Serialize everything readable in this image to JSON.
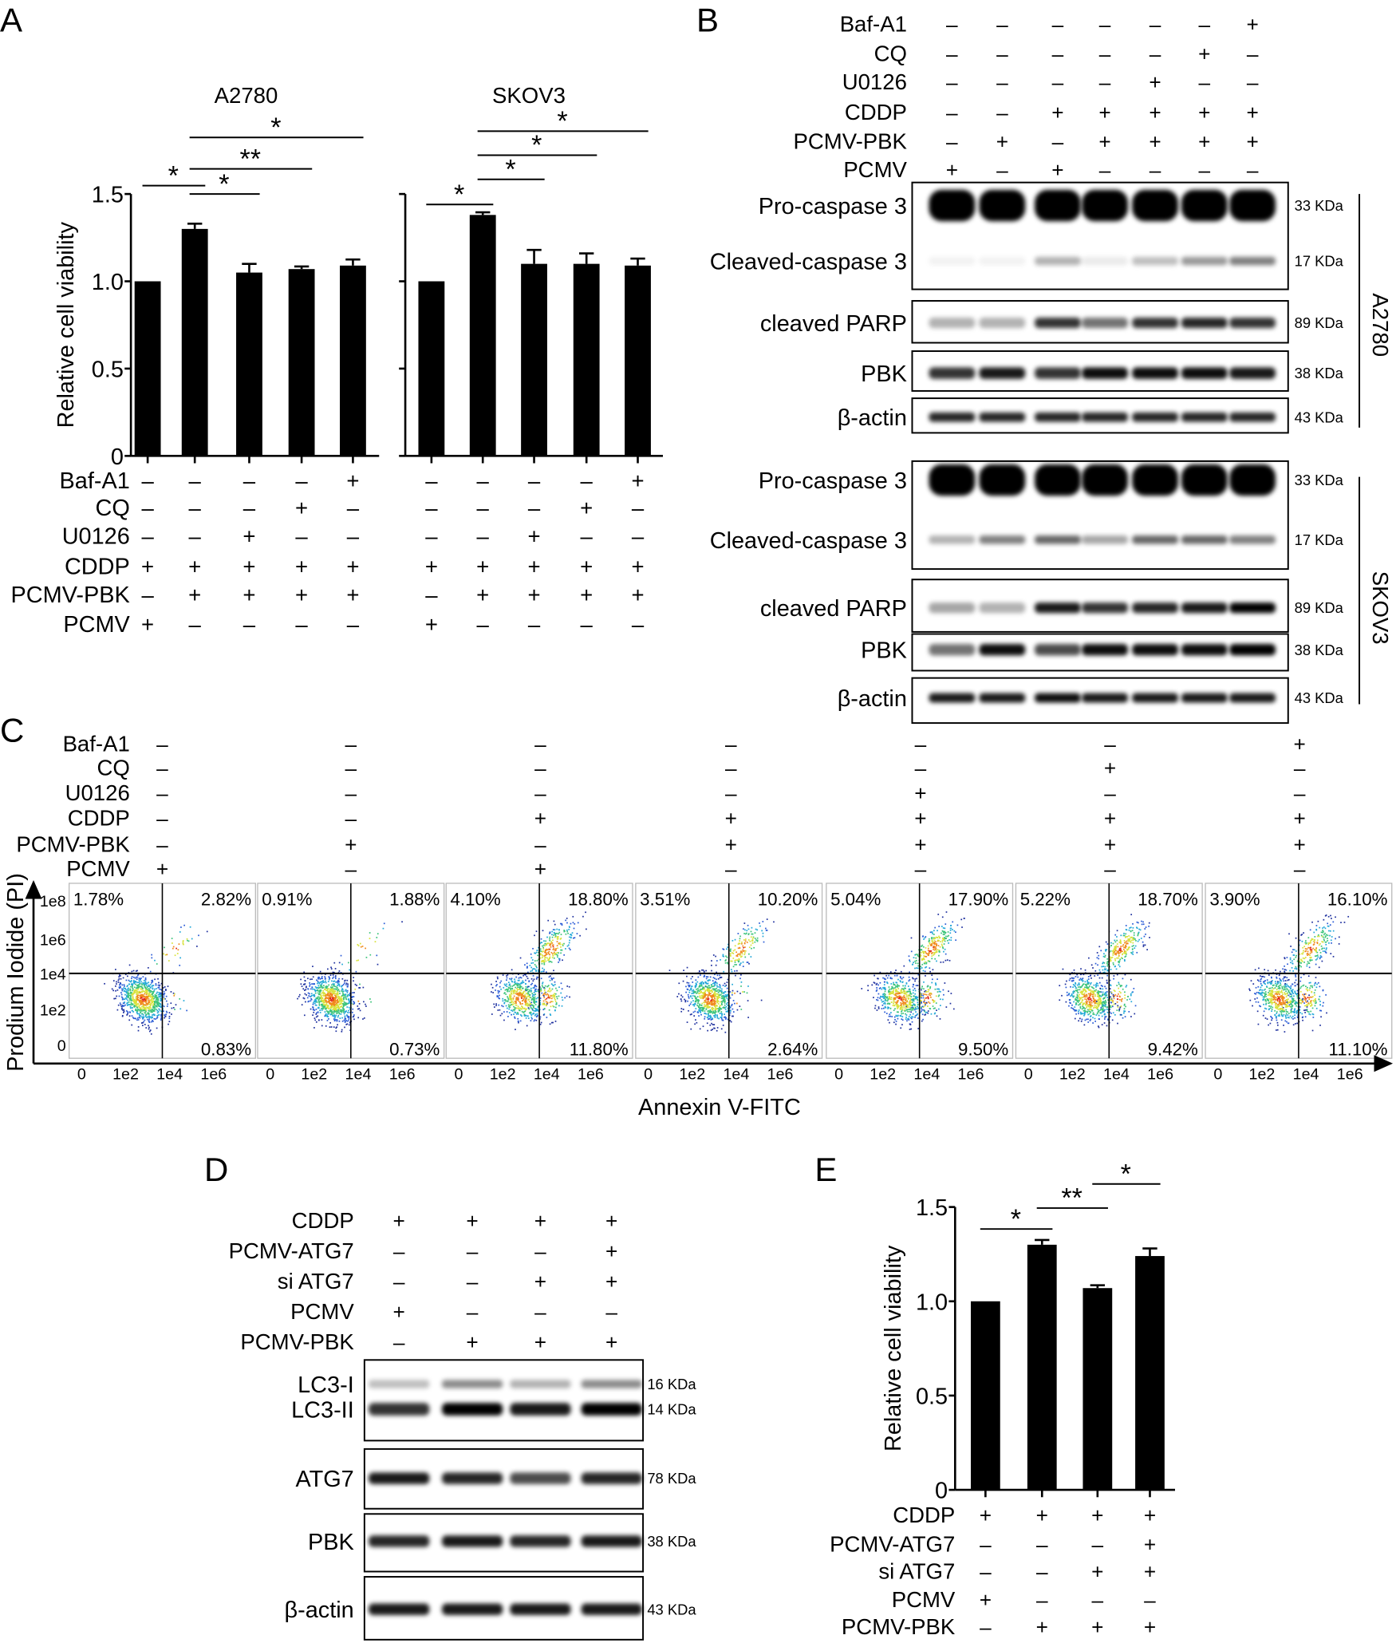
{
  "panels": {
    "A": "A",
    "B": "B",
    "C": "C",
    "D": "D",
    "E": "E"
  },
  "chart_data": [
    {
      "type": "bar",
      "title": "A2780",
      "ylabel": "Relative cell viability",
      "ylim": [
        0,
        1.5
      ],
      "yticks": [
        "0",
        "0.5",
        "1.0",
        "1.5"
      ],
      "values": [
        1.0,
        1.3,
        1.05,
        1.07,
        1.09
      ],
      "errors": [
        0,
        0.03,
        0.05,
        0.015,
        0.035
      ],
      "significance": [
        {
          "from": 1,
          "to": 2,
          "label": "*"
        },
        {
          "from": 2,
          "to": 3,
          "label": "*"
        },
        {
          "from": 2,
          "to": 4,
          "label": "**"
        },
        {
          "from": 2,
          "to": 5,
          "label": "*"
        }
      ]
    },
    {
      "type": "bar",
      "title": "SKOV3",
      "ylim": [
        0,
        1.5
      ],
      "values": [
        1.0,
        1.38,
        1.1,
        1.1,
        1.09
      ],
      "errors": [
        0,
        0.015,
        0.08,
        0.06,
        0.04
      ],
      "significance": [
        {
          "from": 1,
          "to": 2,
          "label": "*"
        },
        {
          "from": 2,
          "to": 3,
          "label": "*"
        },
        {
          "from": 2,
          "to": 4,
          "label": "*"
        },
        {
          "from": 2,
          "to": 5,
          "label": "*"
        }
      ]
    },
    {
      "type": "bar",
      "ylabel": "Relative cell viability",
      "ylim": [
        0,
        1.5
      ],
      "yticks": [
        "0",
        "0.5",
        "1.0",
        "1.5"
      ],
      "values": [
        1.0,
        1.3,
        1.07,
        1.24
      ],
      "errors": [
        0,
        0.025,
        0.015,
        0.04
      ],
      "significance": [
        {
          "from": 1,
          "to": 2,
          "label": "*"
        },
        {
          "from": 2,
          "to": 3,
          "label": "**"
        },
        {
          "from": 3,
          "to": 4,
          "label": "*"
        }
      ]
    }
  ],
  "treatments": {
    "A": [
      {
        "label": "Baf-A1",
        "values": [
          "–",
          "–",
          "–",
          "–",
          "+"
        ]
      },
      {
        "label": "CQ",
        "values": [
          "–",
          "–",
          "–",
          "+",
          "–"
        ]
      },
      {
        "label": "U0126",
        "values": [
          "–",
          "–",
          "+",
          "–",
          "–"
        ]
      },
      {
        "label": "CDDP",
        "values": [
          "+",
          "+",
          "+",
          "+",
          "+"
        ]
      },
      {
        "label": "PCMV-PBK",
        "values": [
          "–",
          "+",
          "+",
          "+",
          "+"
        ]
      },
      {
        "label": "PCMV",
        "values": [
          "+",
          "–",
          "–",
          "–",
          "–"
        ]
      }
    ],
    "B": [
      {
        "label": "Baf-A1",
        "values": [
          "–",
          "–",
          "–",
          "–",
          "–",
          "–",
          "+"
        ]
      },
      {
        "label": "CQ",
        "values": [
          "–",
          "–",
          "–",
          "–",
          "–",
          "+",
          "–"
        ]
      },
      {
        "label": "U0126",
        "values": [
          "–",
          "–",
          "–",
          "–",
          "+",
          "–",
          "–"
        ]
      },
      {
        "label": "CDDP",
        "values": [
          "–",
          "–",
          "+",
          "+",
          "+",
          "+",
          "+"
        ]
      },
      {
        "label": "PCMV-PBK",
        "values": [
          "–",
          "+",
          "–",
          "+",
          "+",
          "+",
          "+"
        ]
      },
      {
        "label": "PCMV",
        "values": [
          "+",
          "–",
          "+",
          "–",
          "–",
          "–",
          "–"
        ]
      }
    ],
    "D": [
      {
        "label": "CDDP",
        "values": [
          "+",
          "+",
          "+",
          "+"
        ]
      },
      {
        "label": "PCMV-ATG7",
        "values": [
          "–",
          "–",
          "–",
          "+"
        ]
      },
      {
        "label": "si ATG7",
        "values": [
          "–",
          "–",
          "+",
          "+"
        ]
      },
      {
        "label": "PCMV",
        "values": [
          "+",
          "–",
          "–",
          "–"
        ]
      },
      {
        "label": "PCMV-PBK",
        "values": [
          "–",
          "+",
          "+",
          "+"
        ]
      }
    ]
  },
  "blots_B": {
    "A2780": {
      "cell_line": "A2780",
      "bands": [
        {
          "label": "Pro-caspase 3",
          "kda": "33 KDa",
          "intensity": [
            1,
            1,
            1,
            1,
            1,
            1,
            1
          ]
        },
        {
          "label": "Cleaved-caspase 3",
          "kda": "17 KDa",
          "intensity": [
            0.05,
            0.05,
            0.3,
            0.08,
            0.25,
            0.4,
            0.5
          ]
        },
        {
          "label": "cleaved PARP",
          "kda": "89 KDa",
          "intensity": [
            0.3,
            0.3,
            0.8,
            0.55,
            0.8,
            0.85,
            0.8
          ]
        },
        {
          "label": "PBK",
          "kda": "38 KDa",
          "intensity": [
            0.8,
            0.9,
            0.8,
            0.95,
            0.95,
            0.95,
            0.9
          ]
        },
        {
          "label": "β-actin",
          "kda": "43 KDa",
          "intensity": [
            0.85,
            0.85,
            0.85,
            0.85,
            0.85,
            0.85,
            0.85
          ]
        }
      ]
    },
    "SKOV3": {
      "cell_line": "SKOV3",
      "bands": [
        {
          "label": "Pro-caspase 3",
          "kda": "33 KDa",
          "intensity": [
            1,
            1,
            1,
            1,
            1,
            1,
            1
          ]
        },
        {
          "label": "Cleaved-caspase 3",
          "kda": "17 KDa",
          "intensity": [
            0.3,
            0.5,
            0.6,
            0.35,
            0.6,
            0.6,
            0.5
          ]
        },
        {
          "label": "cleaved PARP",
          "kda": "89 KDa",
          "intensity": [
            0.35,
            0.3,
            0.9,
            0.8,
            0.85,
            0.9,
            1
          ]
        },
        {
          "label": "PBK",
          "kda": "38 KDa",
          "intensity": [
            0.55,
            0.95,
            0.7,
            0.95,
            0.95,
            0.95,
            1
          ]
        },
        {
          "label": "β-actin",
          "kda": "43 KDa",
          "intensity": [
            0.9,
            0.9,
            0.95,
            0.9,
            0.9,
            0.9,
            0.9
          ]
        }
      ]
    }
  },
  "blots_D": [
    {
      "label": "LC3-I",
      "kda": "16 KDa",
      "intensity": [
        0.25,
        0.45,
        0.3,
        0.45
      ]
    },
    {
      "label": "LC3-II",
      "kda": "14 KDa",
      "intensity": [
        0.8,
        1,
        0.9,
        1
      ]
    },
    {
      "label": "ATG7",
      "kda": "78 KDa",
      "intensity": [
        0.9,
        0.85,
        0.7,
        0.85
      ]
    },
    {
      "label": "PBK",
      "kda": "38 KDa",
      "intensity": [
        0.85,
        0.9,
        0.85,
        0.9
      ]
    },
    {
      "label": "β-actin",
      "kda": "43 KDa",
      "intensity": [
        0.9,
        0.9,
        0.9,
        0.9
      ]
    }
  ],
  "flow": {
    "xlabel": "Annexin V-FITC",
    "ylabel": "Prodium Iodide (PI)",
    "xticks": [
      "0",
      "1e2",
      "1e4",
      "1e6"
    ],
    "yticks": [
      "1e8",
      "1e6",
      "1e4",
      "1e2",
      "0"
    ],
    "plots": [
      {
        "ul": "1.78%",
        "ur": "2.82%",
        "lr": "0.83%"
      },
      {
        "ul": "0.91%",
        "ur": "1.88%",
        "lr": "0.73%"
      },
      {
        "ul": "4.10%",
        "ur": "18.80%",
        "lr": "11.80%"
      },
      {
        "ul": "3.51%",
        "ur": "10.20%",
        "lr": "2.64%"
      },
      {
        "ul": "5.04%",
        "ur": "17.90%",
        "lr": "9.50%"
      },
      {
        "ul": "5.22%",
        "ur": "18.70%",
        "lr": "9.42%"
      },
      {
        "ul": "3.90%",
        "ur": "16.10%",
        "lr": "11.10%"
      }
    ]
  }
}
